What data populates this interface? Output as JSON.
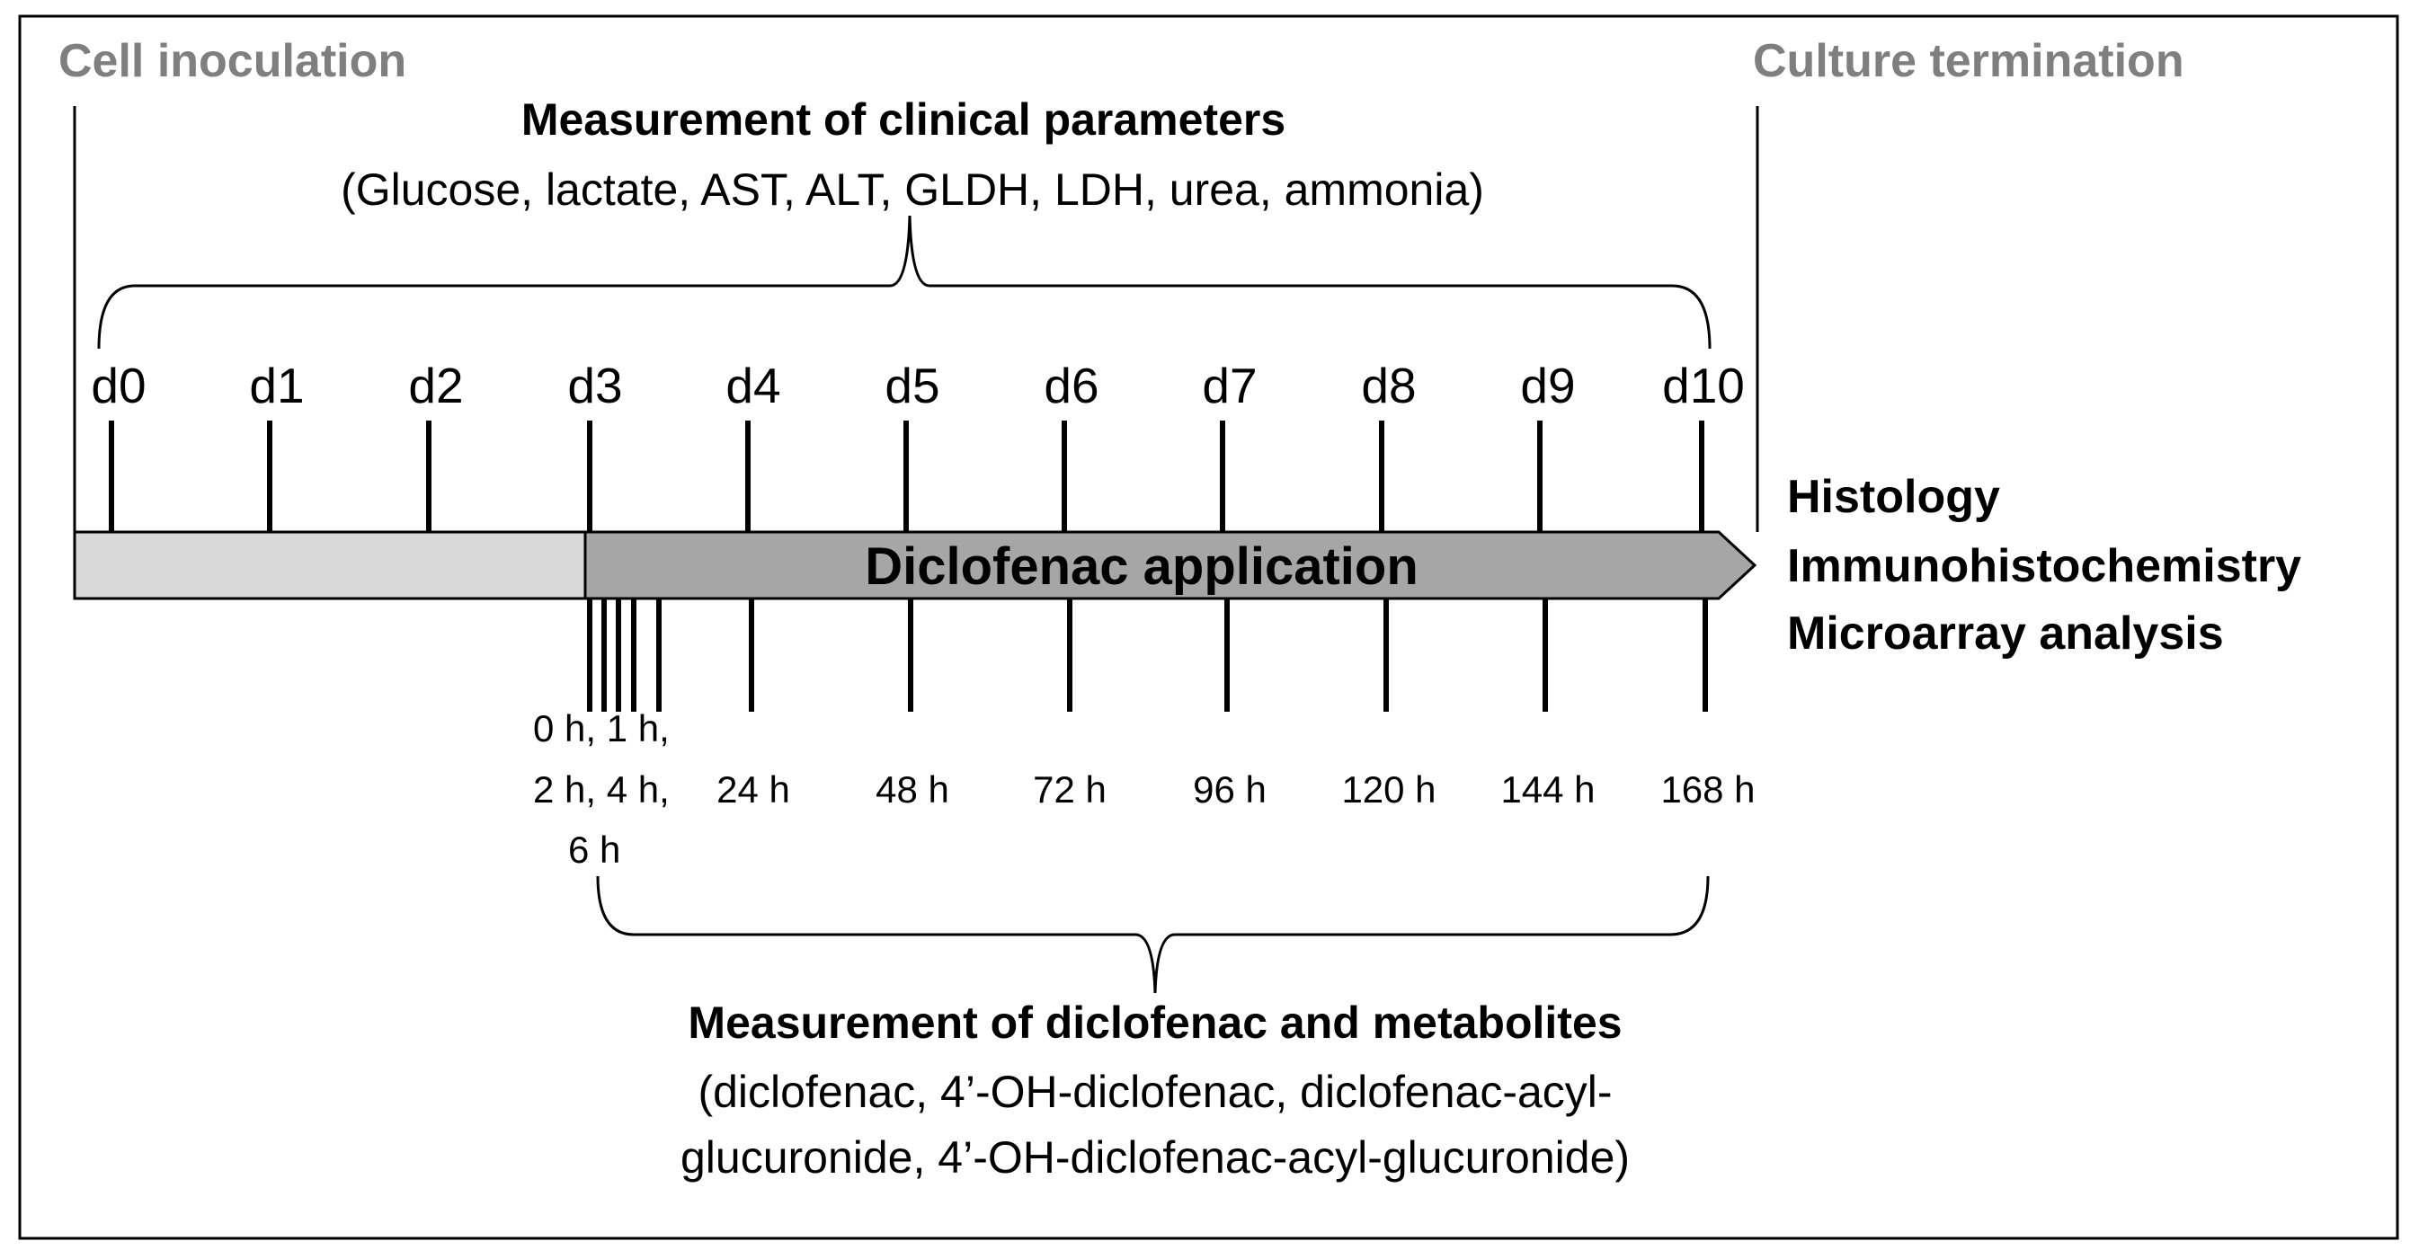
{
  "top_left_label": "Cell inoculation",
  "top_right_label": "Culture termination",
  "clinical": {
    "title": "Measurement of clinical parameters",
    "subtitle": "(Glucose, lactate, AST, ALT, GLDH, LDH, urea, ammonia)"
  },
  "days": [
    "d0",
    "d1",
    "d2",
    "d3",
    "d4",
    "d5",
    "d6",
    "d7",
    "d8",
    "d9",
    "d10"
  ],
  "bar": {
    "label": "Diclofenac application",
    "pre_color": "#d9d9d9",
    "app_color": "#a6a6a6"
  },
  "analyses": [
    "Histology",
    "Immunohistochemistry",
    "Microarray analysis"
  ],
  "hours": {
    "early_lines": [
      "0 h, 1 h,",
      "2 h, 4 h,",
      "6 h"
    ],
    "later": [
      "24 h",
      "48 h",
      "72 h",
      "96 h",
      "120 h",
      "144 h",
      "168 h"
    ]
  },
  "metabolites": {
    "title": "Measurement of diclofenac and metabolites",
    "lines": [
      "(diclofenac, 4’-OH-diclofenac, diclofenac-acyl-",
      "glucuronide, 4’-OH-diclofenac-acyl-glucuronide)"
    ]
  }
}
